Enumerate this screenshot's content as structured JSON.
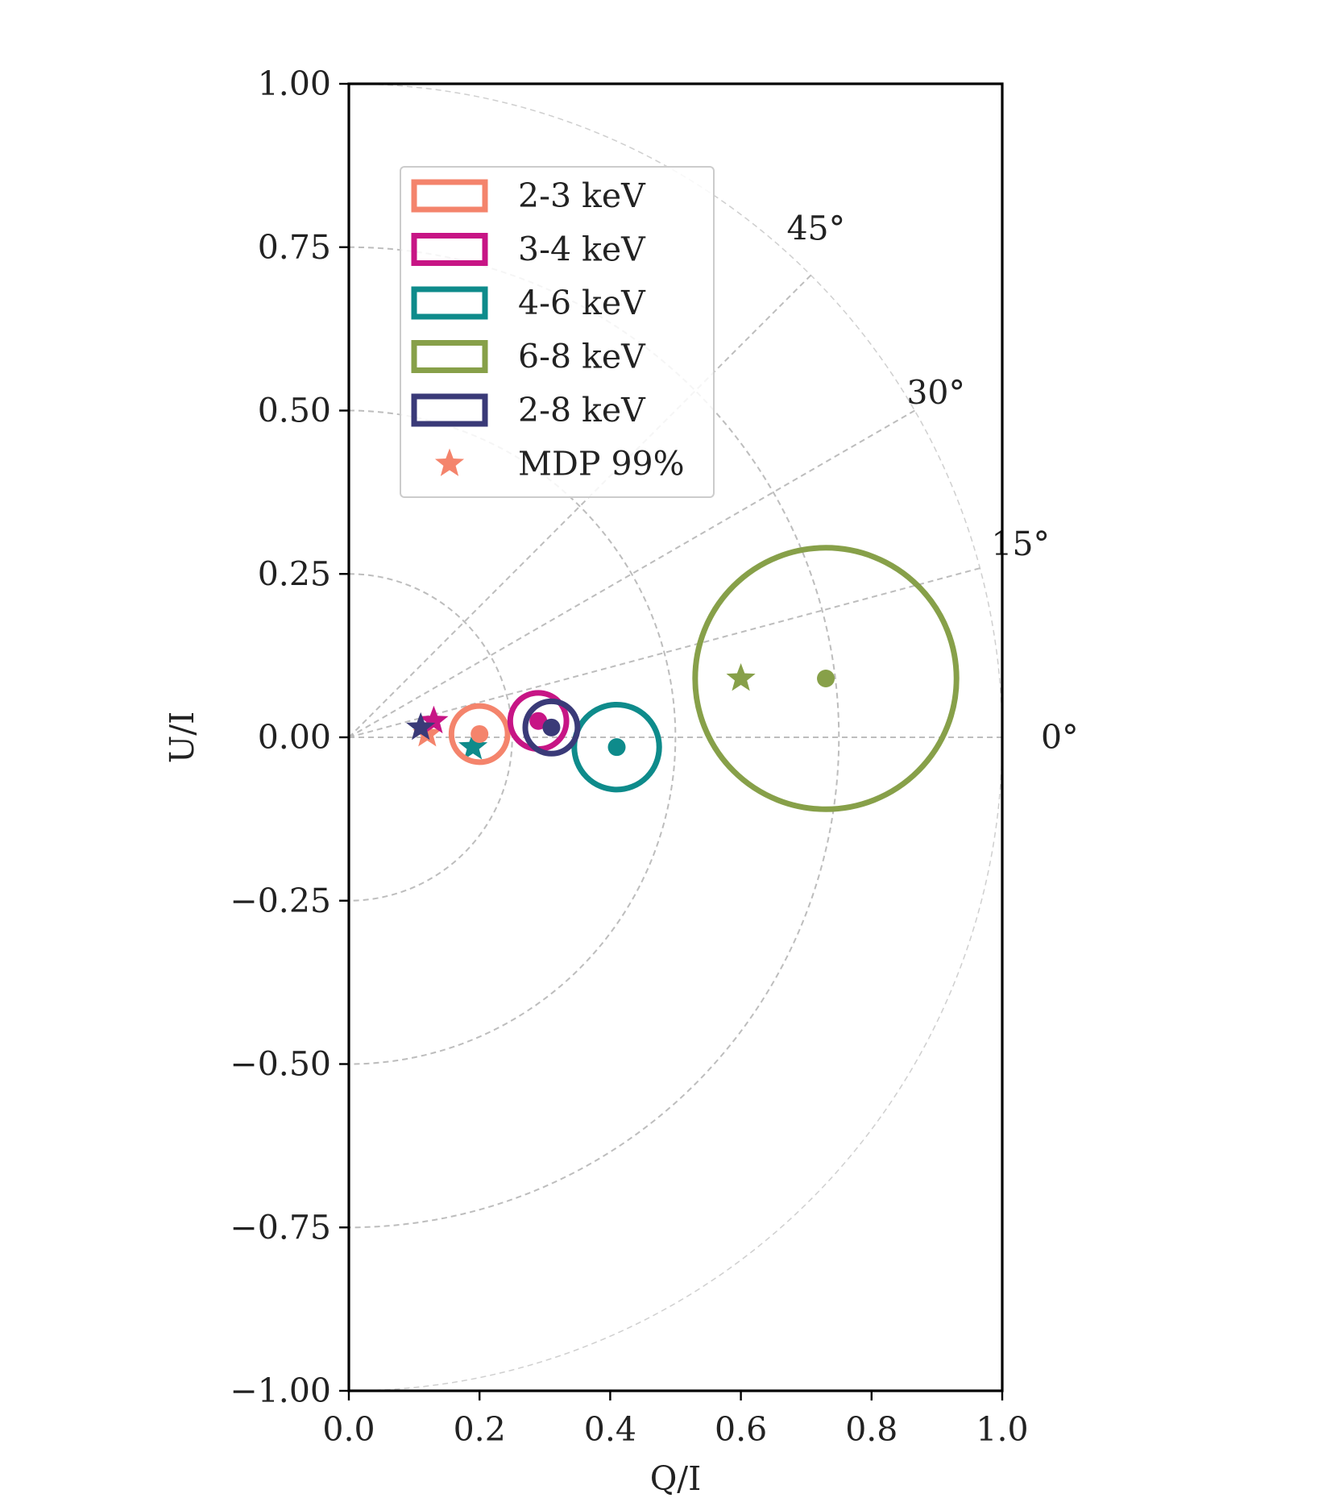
{
  "chart_data": {
    "type": "scatter",
    "title": "",
    "xlabel": "Q/I",
    "ylabel": "U/I",
    "xlim": [
      0.0,
      1.0
    ],
    "ylim": [
      -1.0,
      1.0
    ],
    "xticks": [
      "0.0",
      "0.2",
      "0.4",
      "0.6",
      "0.8",
      "1.0"
    ],
    "xtick_values": [
      0.0,
      0.2,
      0.4,
      0.6,
      0.8,
      1.0
    ],
    "yticks": [
      "−1.00",
      "−0.75",
      "−0.50",
      "−0.25",
      "0.00",
      "0.25",
      "0.50",
      "0.75",
      "1.00"
    ],
    "ytick_values": [
      -1.0,
      -0.75,
      -0.5,
      -0.25,
      0.0,
      0.25,
      0.5,
      0.75,
      1.0
    ],
    "grid": {
      "radii": [
        0.25,
        0.5,
        0.75,
        1.0
      ],
      "angle_lines_deg": [
        0,
        15,
        30,
        45
      ],
      "angle_labels": [
        "0°",
        "15°",
        "30°",
        "45°"
      ]
    },
    "legend_position": "upper-left",
    "series": [
      {
        "name": "2-3 keV",
        "color": "#F4846C",
        "q": 0.2,
        "u": 0.005,
        "radius": 0.043,
        "mdp_q": 0.12,
        "mdp_u": 0.005
      },
      {
        "name": "3-4 keV",
        "color": "#C71585",
        "q": 0.29,
        "u": 0.025,
        "radius": 0.043,
        "mdp_q": 0.13,
        "mdp_u": 0.025
      },
      {
        "name": "4-6 keV",
        "color": "#0E8B8B",
        "q": 0.41,
        "u": -0.015,
        "radius": 0.065,
        "mdp_q": 0.19,
        "mdp_u": -0.015
      },
      {
        "name": "6-8 keV",
        "color": "#87A049",
        "q": 0.73,
        "u": 0.09,
        "radius": 0.2,
        "mdp_q": 0.6,
        "mdp_u": 0.09
      },
      {
        "name": "2-8 keV",
        "color": "#3A3A78",
        "q": 0.31,
        "u": 0.015,
        "radius": 0.04,
        "mdp_q": 0.11,
        "mdp_u": 0.015
      }
    ],
    "mdp_legend": {
      "label": "MDP 99%",
      "color": "#F4846C"
    }
  }
}
